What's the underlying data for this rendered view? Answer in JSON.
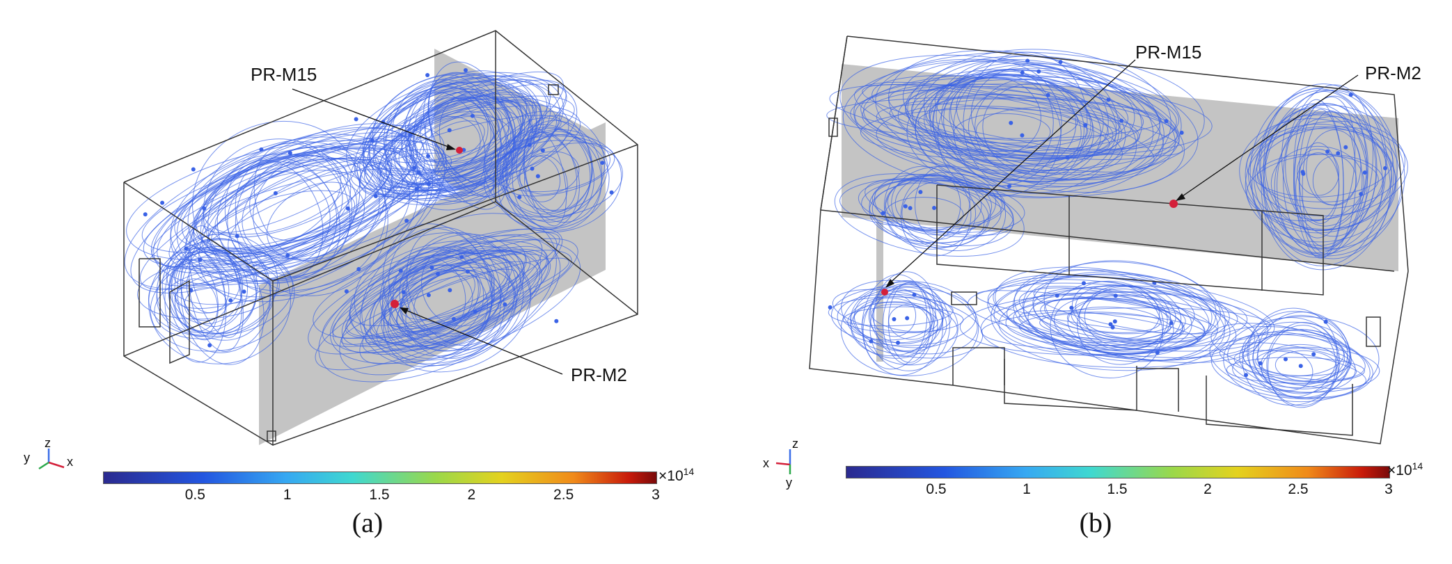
{
  "panel_a": {
    "caption": "(a)",
    "probes": [
      {
        "label": "PR-M15"
      },
      {
        "label": "PR-M2"
      }
    ],
    "triad": {
      "x": "x",
      "y": "y",
      "z": "z"
    }
  },
  "panel_b": {
    "caption": "(b)",
    "probes": [
      {
        "label": "PR-M15"
      },
      {
        "label": "PR-M2"
      }
    ],
    "triad": {
      "x": "x",
      "y": "y",
      "z": "z"
    }
  },
  "colorbar": {
    "ticks": [
      "0.5",
      "1",
      "1.5",
      "2",
      "2.5",
      "3"
    ],
    "tick_values": [
      0.5,
      1,
      1.5,
      2,
      2.5,
      3
    ],
    "range": [
      0,
      3
    ],
    "multiplier": "×10",
    "exponent": "14",
    "colormap": [
      "#2b2a8f",
      "#2356e0",
      "#36a8f2",
      "#3fd8d0",
      "#9ad84a",
      "#e4d21e",
      "#f08a1a",
      "#c81a0a",
      "#7a0a0a"
    ]
  },
  "colors": {
    "streamline": "#3a62e6",
    "plane": "#c4c4c4",
    "probe": "#d4203a",
    "frame": "#333333"
  }
}
